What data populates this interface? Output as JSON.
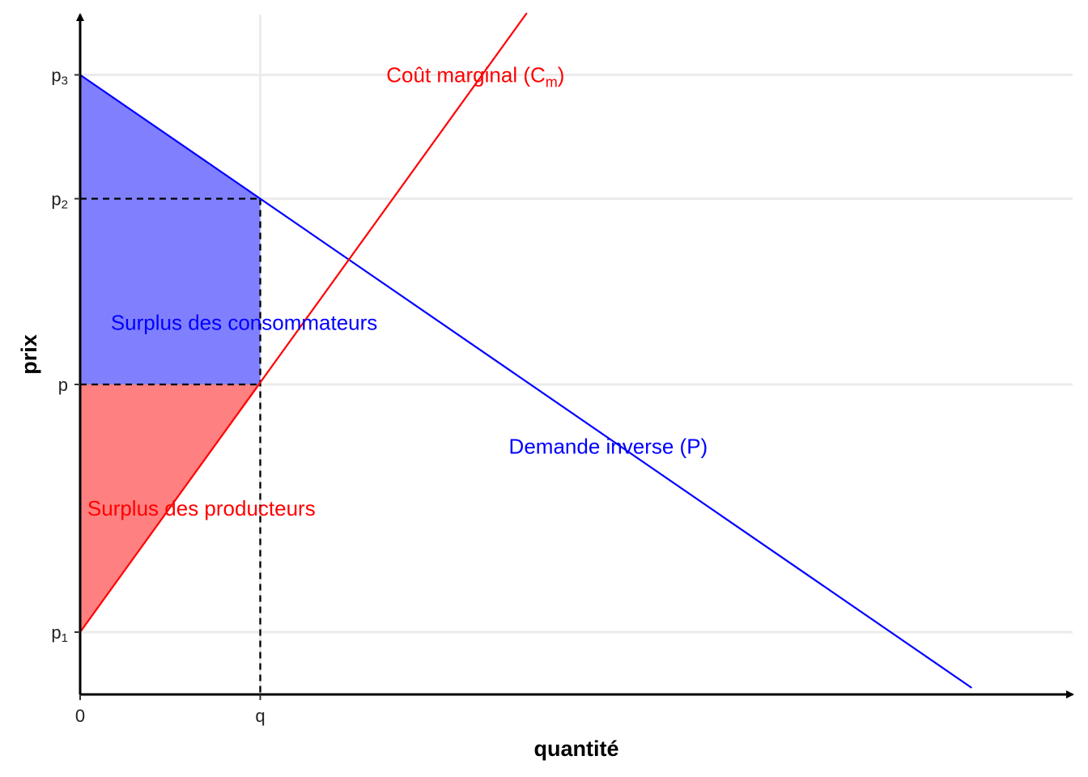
{
  "chart_data": {
    "type": "line",
    "xlabel": "quantité",
    "ylabel": "prix",
    "grid": true,
    "legend": "none",
    "xlim": [
      0,
      5.5
    ],
    "ylim": [
      -0.5,
      5.4
    ],
    "x_ticks": [
      {
        "value": 0,
        "label": "0"
      },
      {
        "value": 1,
        "label": "q"
      }
    ],
    "y_ticks": [
      {
        "value": 0,
        "label": "p",
        "sub": "1"
      },
      {
        "value": 2,
        "label": "p",
        "sub": ""
      },
      {
        "value": 3.5,
        "label": "p",
        "sub": "2"
      },
      {
        "value": 4.5,
        "label": "p",
        "sub": "3"
      }
    ],
    "series": [
      {
        "id": "demand",
        "color": "#0000ff",
        "points": [
          [
            0,
            4.5
          ],
          [
            4.95,
            -0.45
          ]
        ]
      },
      {
        "id": "marginal-cost",
        "color": "#ff0000",
        "points": [
          [
            0,
            0
          ],
          [
            2.48,
            5
          ]
        ]
      }
    ],
    "reference_lines": {
      "q": 1,
      "levels": [
        2,
        3.5
      ]
    },
    "areas": [
      {
        "id": "consumer-surplus",
        "color": "#8080ff",
        "points": [
          [
            0,
            2
          ],
          [
            0,
            4.5
          ],
          [
            1,
            3.5
          ],
          [
            1,
            2
          ]
        ]
      },
      {
        "id": "producer-surplus",
        "color": "#ff8080",
        "points": [
          [
            0,
            0
          ],
          [
            0,
            2
          ],
          [
            1,
            2
          ]
        ]
      }
    ],
    "annotations": [
      {
        "id": "marginal-cost-label",
        "text": "Coût marginal (C",
        "sub": "m",
        "after": ")",
        "color": "#ff0000",
        "x": 1.7,
        "y": 4.5
      },
      {
        "id": "consumer-surplus-label",
        "text": "Surplus des consommateurs",
        "color": "#0000ff",
        "x": 0.17,
        "y": 2.5
      },
      {
        "id": "demand-label",
        "text": "Demande inverse (P)",
        "color": "#0000ff",
        "x": 2.38,
        "y": 1.5
      },
      {
        "id": "producer-surplus-label",
        "text": "Surplus des producteurs",
        "color": "#ff0000",
        "x": 0.04,
        "y": 1
      }
    ]
  }
}
